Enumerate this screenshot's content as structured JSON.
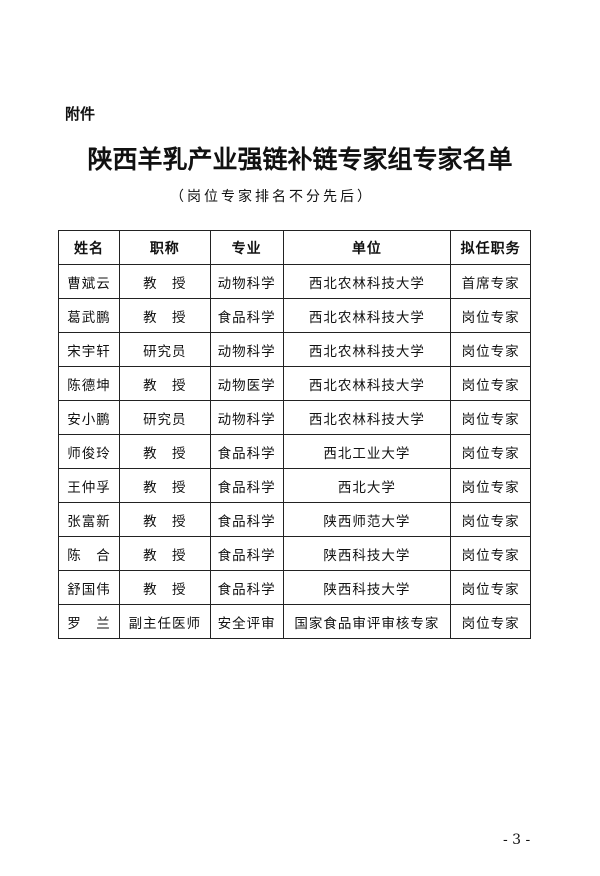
{
  "attachment_label": "附件",
  "title": "陕西羊乳产业强链补链专家组专家名单",
  "subtitle": "（岗位专家排名不分先后）",
  "table": {
    "headers": [
      "姓名",
      "职称",
      "专业",
      "单位",
      "拟任职务"
    ],
    "rows": [
      [
        "曹斌云",
        "教　授",
        "动物科学",
        "西北农林科技大学",
        "首席专家"
      ],
      [
        "葛武鹏",
        "教　授",
        "食品科学",
        "西北农林科技大学",
        "岗位专家"
      ],
      [
        "宋宇轩",
        "研究员",
        "动物科学",
        "西北农林科技大学",
        "岗位专家"
      ],
      [
        "陈德坤",
        "教　授",
        "动物医学",
        "西北农林科技大学",
        "岗位专家"
      ],
      [
        "安小鹏",
        "研究员",
        "动物科学",
        "西北农林科技大学",
        "岗位专家"
      ],
      [
        "师俊玲",
        "教　授",
        "食品科学",
        "西北工业大学",
        "岗位专家"
      ],
      [
        "王仲孚",
        "教　授",
        "食品科学",
        "西北大学",
        "岗位专家"
      ],
      [
        "张富新",
        "教　授",
        "食品科学",
        "陕西师范大学",
        "岗位专家"
      ],
      [
        "陈　合",
        "教　授",
        "食品科学",
        "陕西科技大学",
        "岗位专家"
      ],
      [
        "舒国伟",
        "教　授",
        "食品科学",
        "陕西科技大学",
        "岗位专家"
      ],
      [
        "罗　兰",
        "副主任医师",
        "安全评审",
        "国家食品审评审核专家",
        "岗位专家"
      ]
    ]
  },
  "page_number": "- 3 -"
}
